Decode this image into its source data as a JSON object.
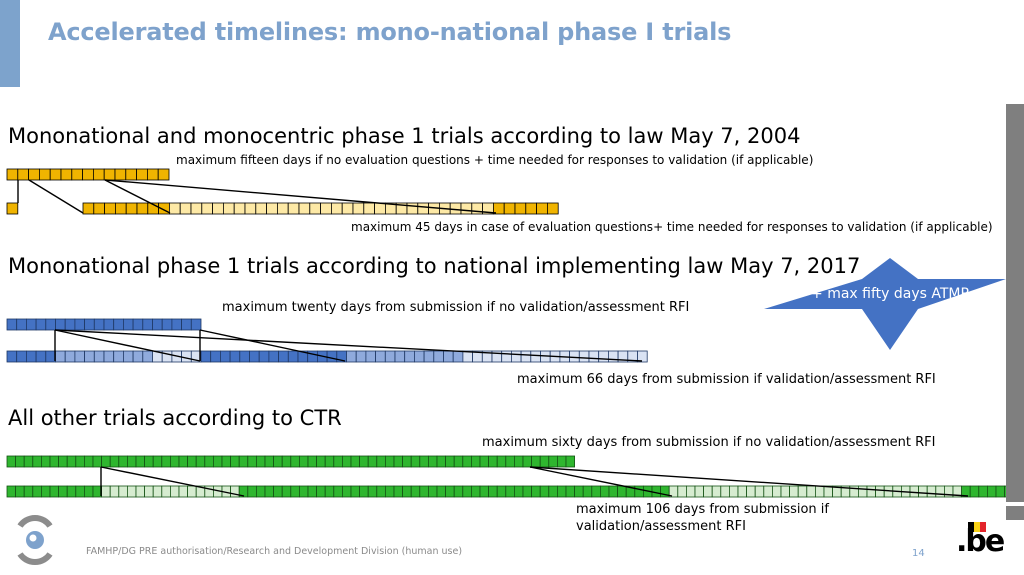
{
  "slide": {
    "title": "Accelerated timelines: mono-national phase I trials",
    "footer": "FAMHP/DG PRE authorisation/Research and Development Division (human use)",
    "page_number": "14"
  },
  "section1": {
    "heading": "Mononational and monocentric phase 1 trials according to law May 7, 2004",
    "note_top": "maximum fifteen days if no evaluation questions + time needed for responses to validation (if applicable)",
    "note_bottom": "maximum  45 days in case of evaluation questions+ time needed for responses to validation (if applicable)",
    "colors": {
      "dark": "#f0b400",
      "light": "#fde9a6",
      "border": "#000000"
    }
  },
  "section2": {
    "heading": "Mononational phase 1 trials according to national implementing law May 7, 2017",
    "note_top": "maximum twenty days from submission if no validation/assessment RFI",
    "note_bottom": "maximum 66 days from submission if validation/assessment RFI",
    "colors": {
      "dark": "#4472c4",
      "mid": "#8faadc",
      "light": "#dae3f3",
      "border": "#1f3864"
    }
  },
  "section3": {
    "heading": "All other trials according to CTR",
    "note_top": "maximum sixty days from submission if no validation/assessment RFI",
    "note_bottom_line1": "maximum 106 days from submission if",
    "note_bottom_line2": "validation/assessment RFI",
    "colors": {
      "dark": "#2fb62f",
      "light": "#d6ecd0",
      "border": "#145214"
    }
  },
  "badge": {
    "label": "+ max fifty days ATMP",
    "color": "#4472c4"
  },
  "logos": {
    "famhp_icon": "famhp-logo-icon",
    "belgium_logo": ".be"
  }
}
